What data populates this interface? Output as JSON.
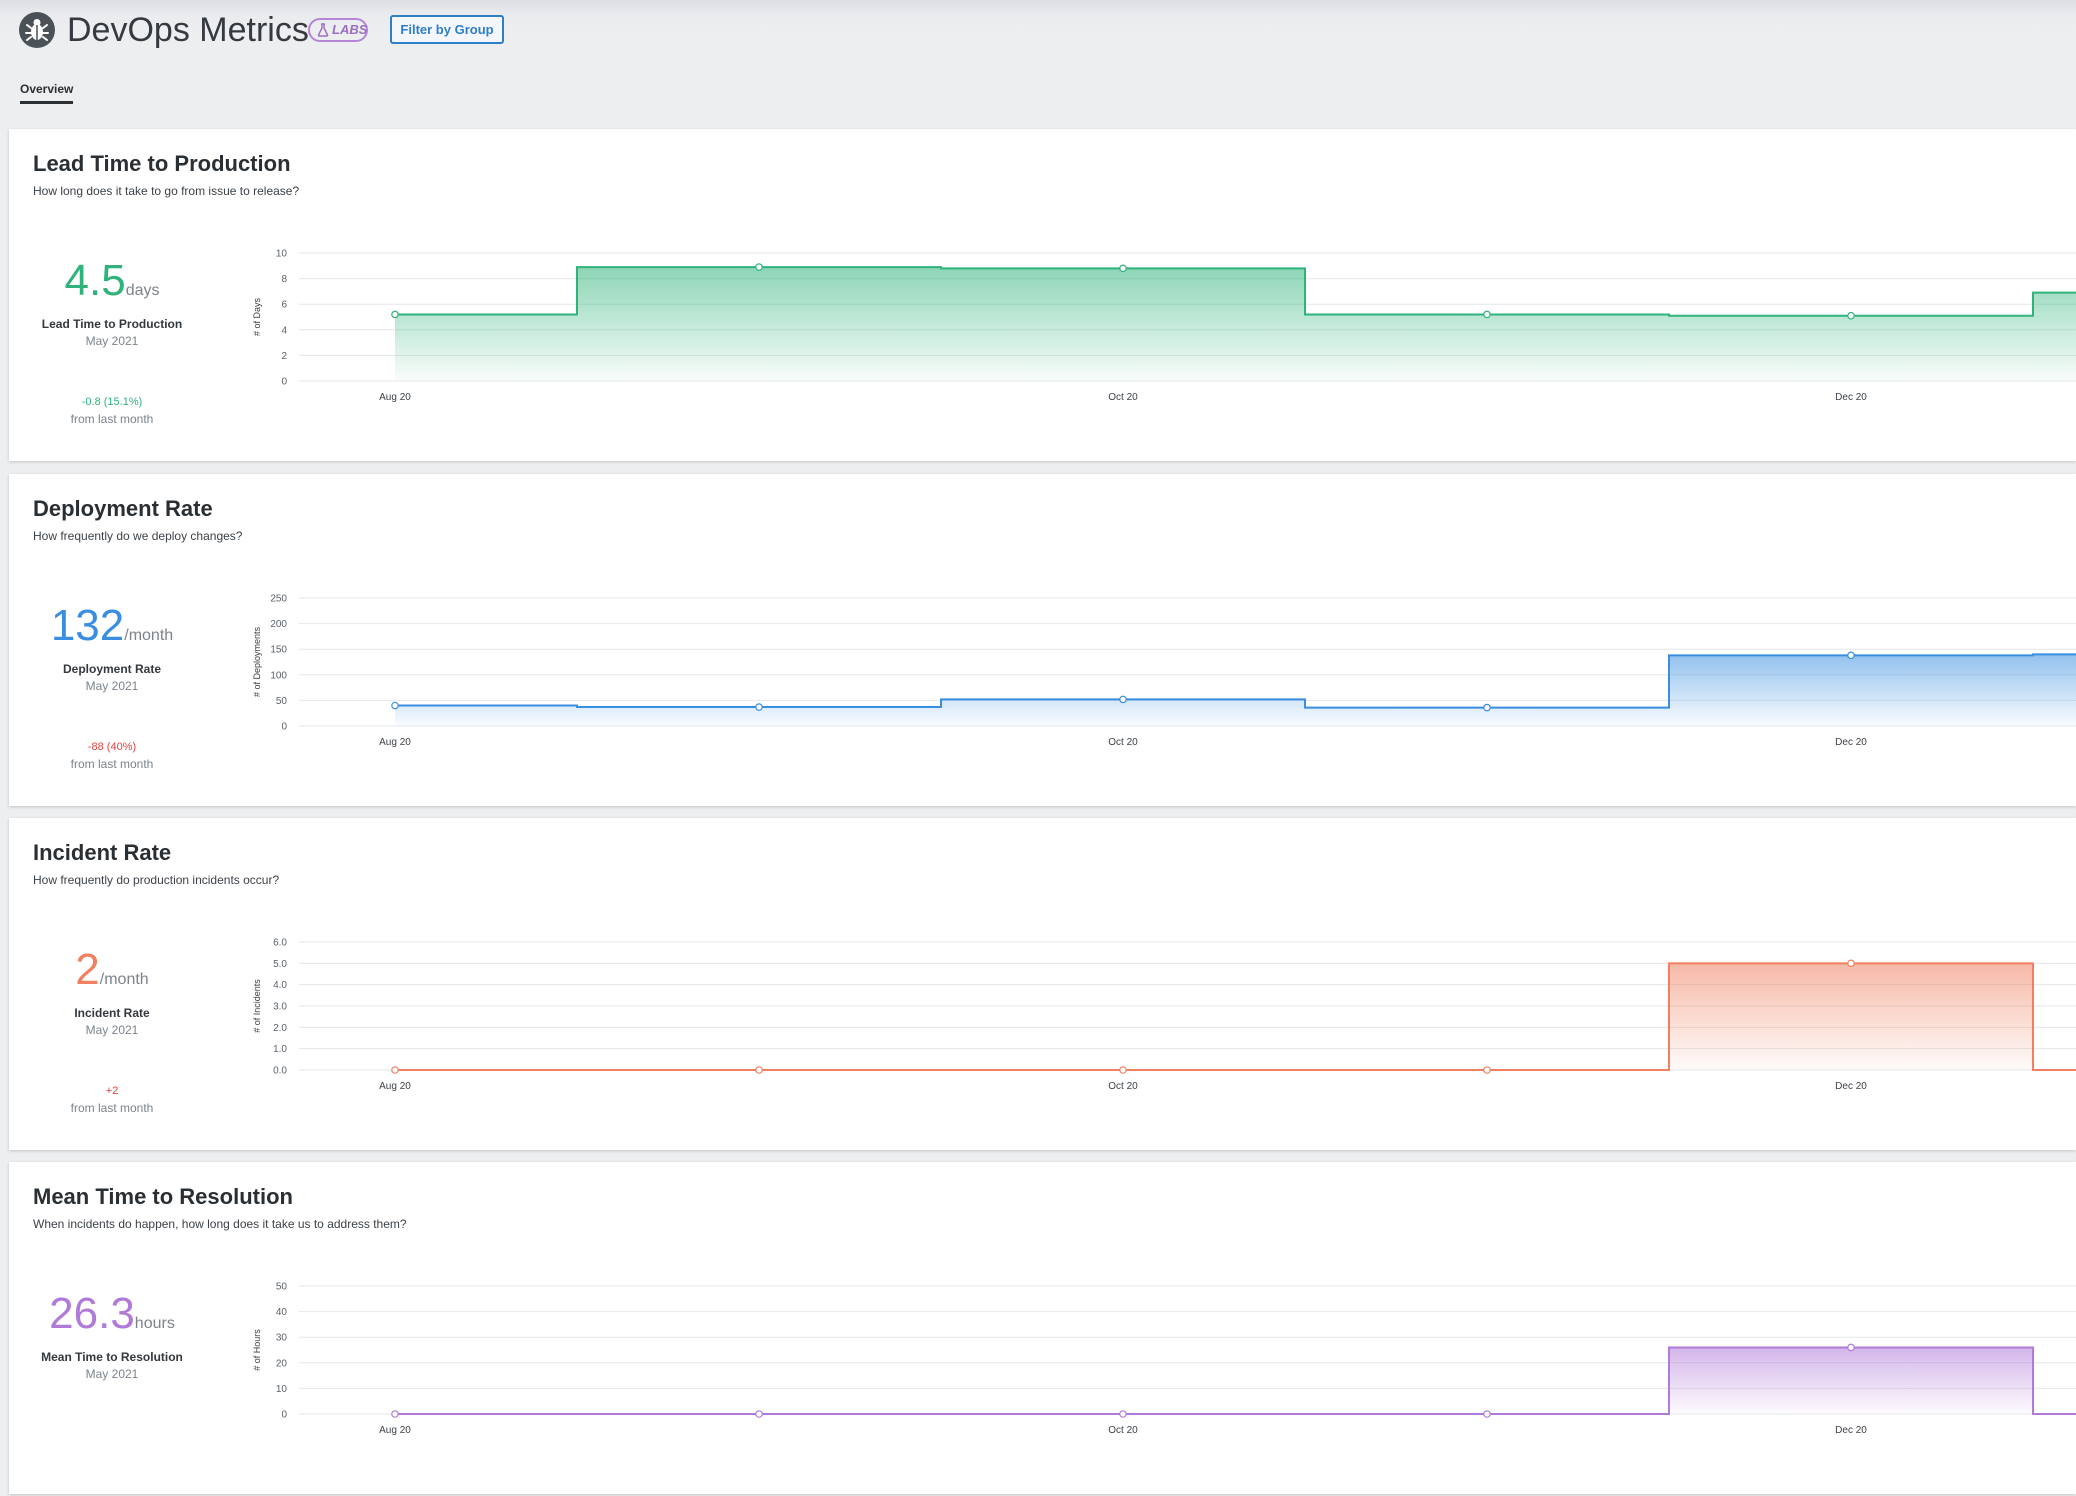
{
  "header": {
    "title": "DevOps Metrics",
    "labs_badge": "LABS",
    "filter_button": "Filter by Group",
    "icons": {
      "logo": "bug-icon",
      "labs": "flask-icon"
    }
  },
  "tabs": [
    {
      "label": "Overview",
      "active": true
    }
  ],
  "cards": [
    {
      "title": "Lead Time to Production",
      "subtitle": "How long does it take to go from issue to release?",
      "stat": {
        "value": "4.5",
        "unit": "days",
        "label": "Lead Time to Production",
        "period": "May 2021",
        "change": "-0.8 (15.1%)",
        "change_color": "#2fb37a",
        "from": "from last month"
      },
      "color": "#2fb37a"
    },
    {
      "title": "Deployment Rate",
      "subtitle": "How frequently do we deploy changes?",
      "stat": {
        "value": "132",
        "unit": "/month",
        "label": "Deployment Rate",
        "period": "May 2021",
        "change": "-88 (40%)",
        "change_color": "#e0443d",
        "from": "from last month"
      },
      "color": "#3a8ee0"
    },
    {
      "title": "Incident Rate",
      "subtitle": "How frequently do production incidents occur?",
      "stat": {
        "value": "2",
        "unit": "/month",
        "label": "Incident Rate",
        "period": "May 2021",
        "change": "+2",
        "change_color": "#e0443d",
        "from": "from last month"
      },
      "color": "#f0805f"
    },
    {
      "title": "Mean Time to Resolution",
      "subtitle": "When incidents do happen, how long does it take us to address them?",
      "stat": {
        "value": "26.3",
        "unit": "hours",
        "label": "Mean Time to Resolution",
        "period": "May 2021",
        "change": "",
        "change_color": "#7c848b",
        "from": ""
      },
      "color": "#b07ad9"
    }
  ],
  "chart_data": [
    {
      "type": "area",
      "step": true,
      "title": "",
      "xlabel": "",
      "ylabel": "# of Days",
      "x_tick_labels": [
        "Aug 20",
        "Oct 20",
        "Dec 20"
      ],
      "y_ticks": [
        "0",
        "2",
        "4",
        "6",
        "8",
        "10"
      ],
      "ylim": [
        0,
        10
      ],
      "series": [
        {
          "color": "#2fb37a",
          "x": [
            "2020-08",
            "2020-09",
            "2020-10",
            "2020-11",
            "2020-12",
            "2021-01"
          ],
          "values": [
            5.2,
            8.9,
            8.8,
            5.2,
            5.1,
            6.9
          ]
        }
      ]
    },
    {
      "type": "area",
      "step": true,
      "title": "",
      "xlabel": "",
      "ylabel": "# of Deployments",
      "x_tick_labels": [
        "Aug 20",
        "Oct 20",
        "Dec 20"
      ],
      "y_ticks": [
        "0",
        "50",
        "100",
        "150",
        "200",
        "250"
      ],
      "ylim": [
        0,
        250
      ],
      "series": [
        {
          "color": "#3a8ee0",
          "x": [
            "2020-08",
            "2020-09",
            "2020-10",
            "2020-11",
            "2020-12",
            "2021-01"
          ],
          "values": [
            40,
            37,
            52,
            36,
            138,
            140
          ]
        }
      ]
    },
    {
      "type": "area",
      "step": true,
      "title": "",
      "xlabel": "",
      "ylabel": "# of Incidents",
      "x_tick_labels": [
        "Aug 20",
        "Oct 20",
        "Dec 20"
      ],
      "y_ticks": [
        "0.0",
        "1.0",
        "2.0",
        "3.0",
        "4.0",
        "5.0",
        "6.0"
      ],
      "ylim": [
        0,
        6
      ],
      "series": [
        {
          "color": "#f0805f",
          "x": [
            "2020-08",
            "2020-09",
            "2020-10",
            "2020-11",
            "2020-12",
            "2021-01"
          ],
          "values": [
            0,
            0,
            0,
            0,
            5,
            0
          ]
        }
      ]
    },
    {
      "type": "area",
      "step": true,
      "title": "",
      "xlabel": "",
      "ylabel": "# of Hours",
      "x_tick_labels": [
        "Aug 20",
        "Oct 20",
        "Dec 20"
      ],
      "y_ticks": [
        "0",
        "10",
        "20",
        "30",
        "40",
        "50"
      ],
      "ylim": [
        0,
        50
      ],
      "series": [
        {
          "color": "#b07ad9",
          "x": [
            "2020-08",
            "2020-09",
            "2020-10",
            "2020-11",
            "2020-12",
            "2021-01"
          ],
          "values": [
            0,
            0,
            0,
            0,
            26,
            0
          ]
        }
      ]
    }
  ]
}
